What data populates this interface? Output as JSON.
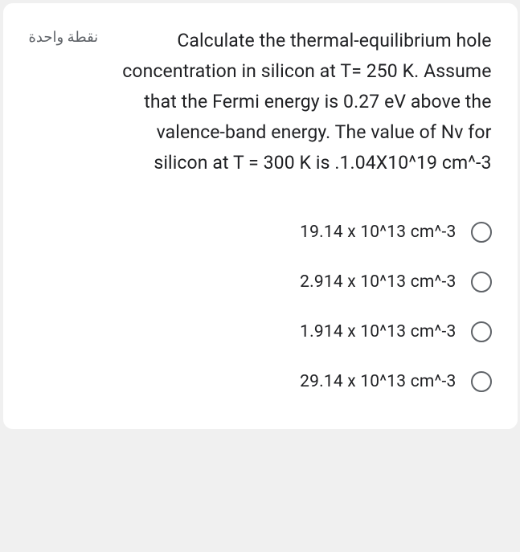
{
  "question": {
    "points_label": "نقطة واحدة",
    "text": "Calculate the thermal-equilibrium hole concentration in silicon at T= 250 K. Assume that the Fermi energy is 0.27 eV above the valence-band energy. The value of Nv for silicon at T = 300 K is .1.04X10^19 cm^-3",
    "text_color": "#202124",
    "points_color": "#5f6368",
    "font_size_question": 23,
    "font_size_points": 18
  },
  "options": [
    {
      "label": "19.14 x 10^13 cm^-3"
    },
    {
      "label": "2.914 x 10^13 cm^-3"
    },
    {
      "label": "1.914 x 10^13 cm^-3"
    },
    {
      "label": "29.14 x 10^13 cm^-3"
    }
  ],
  "styling": {
    "card_background": "#ffffff",
    "card_border_radius": 12,
    "radio_border_color": "#5f6368",
    "radio_size": 26,
    "option_font_size": 21,
    "option_color": "#202124"
  }
}
